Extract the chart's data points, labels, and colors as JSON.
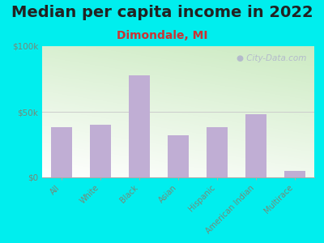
{
  "title": "Median per capita income in 2022",
  "subtitle": "Dimondale, MI",
  "categories": [
    "All",
    "White",
    "Black",
    "Asian",
    "Hispanic",
    "American Indian",
    "Multirace"
  ],
  "values": [
    38000,
    40000,
    78000,
    32000,
    38000,
    48000,
    5000
  ],
  "bar_color": "#c0aed4",
  "title_fontsize": 14,
  "subtitle_fontsize": 10,
  "subtitle_color": "#cc3333",
  "background_color": "#00eeee",
  "ylim": [
    0,
    100000
  ],
  "yticks": [
    0,
    50000,
    100000
  ],
  "ytick_labels": [
    "$0",
    "$50k",
    "$100k"
  ],
  "tick_color": "#778877",
  "watermark": "City-Data.com"
}
